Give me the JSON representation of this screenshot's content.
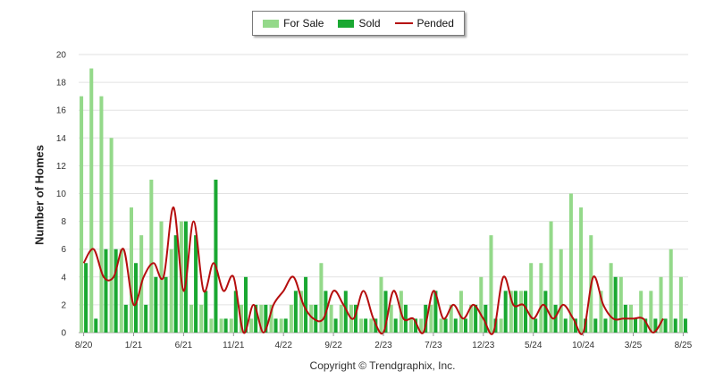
{
  "chart_data": {
    "type": "bar",
    "ylabel": "Number of Homes",
    "ylim": [
      0,
      20
    ],
    "yticks": [
      0,
      2,
      4,
      6,
      8,
      10,
      12,
      14,
      16,
      18,
      20
    ],
    "grid": true,
    "legend_position": "top-center",
    "x_tick_labels": [
      "8/20",
      "1/21",
      "6/21",
      "11/21",
      "4/22",
      "9/22",
      "2/23",
      "7/23",
      "12/23",
      "5/24",
      "10/24",
      "3/25",
      "8/25"
    ],
    "x_tick_every": 5,
    "series": [
      {
        "name": "For Sale",
        "type": "bar",
        "color": "#94d98a",
        "values": [
          17,
          19,
          17,
          14,
          6,
          9,
          7,
          11,
          8,
          6,
          8,
          2,
          2,
          1,
          1,
          1,
          2,
          1,
          2,
          2,
          1,
          2,
          3,
          2,
          5,
          2,
          2,
          2,
          1,
          1,
          4,
          2,
          3,
          1,
          1,
          2,
          1,
          2,
          3,
          2,
          4,
          7,
          1,
          3,
          3,
          5,
          5,
          8,
          6,
          10,
          9,
          7,
          3,
          5,
          4,
          2,
          3,
          3,
          4,
          6,
          4
        ]
      },
      {
        "name": "Sold",
        "type": "bar",
        "color": "#1aa832",
        "values": [
          5,
          1,
          6,
          6,
          2,
          5,
          2,
          4,
          4,
          7,
          8,
          7,
          3,
          11,
          1,
          3,
          4,
          2,
          2,
          1,
          1,
          3,
          4,
          2,
          3,
          1,
          3,
          2,
          1,
          1,
          3,
          1,
          2,
          1,
          2,
          3,
          1,
          1,
          1,
          2,
          2,
          1,
          3,
          3,
          3,
          1,
          3,
          2,
          1,
          1,
          1,
          1,
          1,
          4,
          2,
          1,
          1,
          1,
          1,
          1,
          1
        ]
      },
      {
        "name": "Pended",
        "type": "line",
        "color": "#b50e0e",
        "values": [
          5,
          6,
          4,
          4,
          6,
          2,
          4,
          5,
          4,
          9,
          3,
          8,
          3,
          5,
          3,
          4,
          0,
          2,
          0,
          2,
          3,
          4,
          2,
          1,
          1,
          3,
          2,
          1,
          3,
          1,
          0,
          3,
          1,
          1,
          0,
          3,
          1,
          2,
          1,
          2,
          1,
          0,
          4,
          2,
          2,
          1,
          2,
          1,
          2,
          1,
          0,
          4,
          2,
          1,
          1,
          1,
          1,
          0,
          1,
          null,
          null
        ]
      }
    ]
  },
  "footer": {
    "copyright": "Copyright © Trendgraphix, Inc."
  }
}
